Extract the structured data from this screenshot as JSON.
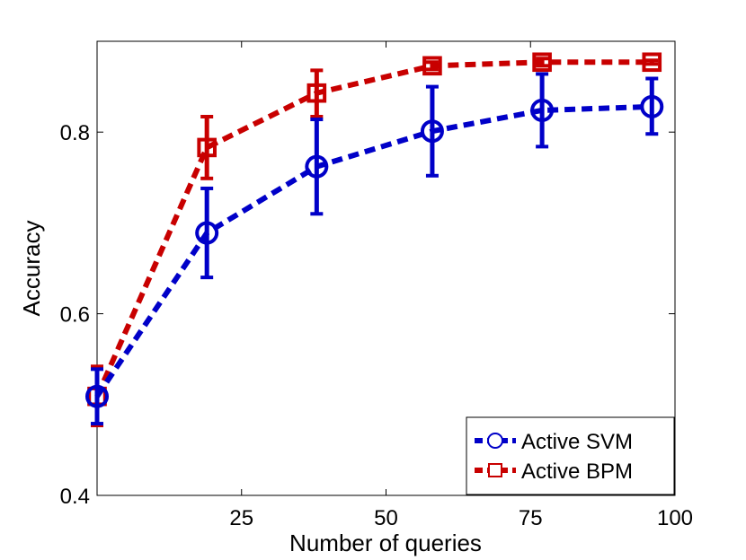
{
  "chart_data": {
    "type": "line",
    "title": "",
    "xlabel": "Number of queries",
    "ylabel": "Accuracy",
    "xlim": [
      0,
      100
    ],
    "ylim": [
      0.4,
      0.9
    ],
    "xticks": [
      25,
      50,
      75,
      100
    ],
    "yticks": [
      0.4,
      0.6,
      0.8
    ],
    "grid": false,
    "legend_position": "bottom-right",
    "series": [
      {
        "name": "Active SVM",
        "color": "#0000c8",
        "marker": "circle",
        "x": [
          0,
          19,
          38,
          58,
          77,
          96
        ],
        "y": [
          0.509,
          0.689,
          0.762,
          0.801,
          0.824,
          0.828
        ],
        "err_low": [
          0.479,
          0.64,
          0.71,
          0.752,
          0.784,
          0.798
        ],
        "err_high": [
          0.539,
          0.738,
          0.814,
          0.85,
          0.864,
          0.859
        ]
      },
      {
        "name": "Active BPM",
        "color": "#c80000",
        "marker": "square",
        "x": [
          0,
          19,
          38,
          58,
          77,
          96
        ],
        "y": [
          0.509,
          0.783,
          0.843,
          0.873,
          0.877,
          0.877
        ],
        "err_low": [
          0.477,
          0.749,
          0.817,
          0.869,
          0.873,
          0.875
        ],
        "err_high": [
          0.542,
          0.817,
          0.868,
          0.877,
          0.881,
          0.879
        ]
      }
    ]
  }
}
